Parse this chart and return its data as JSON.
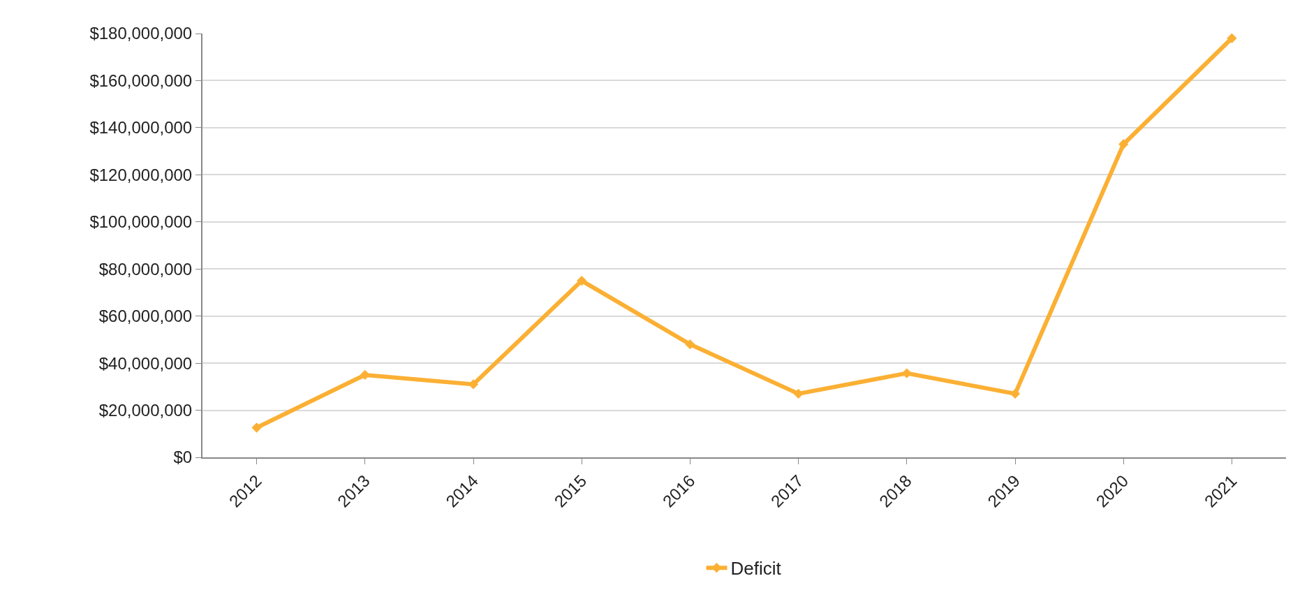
{
  "chart_data": {
    "type": "line",
    "categories": [
      "2012",
      "2013",
      "2014",
      "2015",
      "2016",
      "2017",
      "2018",
      "2019",
      "2020",
      "2021"
    ],
    "series": [
      {
        "name": "Deficit",
        "color": "#fbb034",
        "values": [
          12600000,
          35000000,
          31000000,
          75000000,
          48000000,
          27000000,
          35700000,
          27000000,
          133000000,
          178000000
        ]
      }
    ],
    "ylim": [
      0,
      180000000
    ],
    "yticks": [
      {
        "value": 0,
        "label": "$0"
      },
      {
        "value": 20000000,
        "label": "$20,000,000"
      },
      {
        "value": 40000000,
        "label": "$40,000,000"
      },
      {
        "value": 60000000,
        "label": "$60,000,000"
      },
      {
        "value": 80000000,
        "label": "$80,000,000"
      },
      {
        "value": 100000000,
        "label": "$100,000,000"
      },
      {
        "value": 120000000,
        "label": "$120,000,000"
      },
      {
        "value": 140000000,
        "label": "$140,000,000"
      },
      {
        "value": 160000000,
        "label": "$160,000,000"
      },
      {
        "value": 180000000,
        "label": "$180,000,000"
      }
    ],
    "grid": "y",
    "legend": "bottom",
    "marker": "diamond",
    "line_style": "solid"
  }
}
